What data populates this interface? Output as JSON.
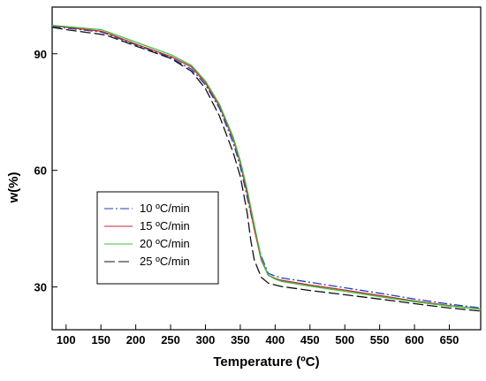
{
  "chart_data": {
    "type": "line",
    "title": "",
    "xlabel": "Temperature (ºC)",
    "ylabel": "w(%)",
    "xlim": [
      80,
      695
    ],
    "ylim": [
      19,
      102
    ],
    "xticks": [
      100,
      150,
      200,
      250,
      300,
      350,
      400,
      450,
      500,
      550,
      600,
      650
    ],
    "yticks": [
      30,
      60,
      90
    ],
    "legend_position": "lower-left",
    "series": [
      {
        "name": "10 ºC/min",
        "color": "#1f3fbf",
        "dash": "10,3,2,3",
        "x": [
          80,
          100,
          150,
          160,
          200,
          250,
          280,
          300,
          320,
          340,
          350,
          360,
          370,
          380,
          390,
          400,
          410,
          450,
          500,
          550,
          600,
          650,
          695
        ],
        "y": [
          97,
          96.6,
          95.6,
          95,
          92.3,
          89,
          86,
          82,
          76,
          67,
          61,
          53,
          45,
          38,
          33.5,
          32.8,
          32.3,
          31.2,
          29.8,
          28.4,
          26.9,
          25.6,
          24.6
        ]
      },
      {
        "name": "15 ºC/min",
        "color": "#c0282d",
        "dash": "",
        "x": [
          80,
          100,
          150,
          160,
          200,
          250,
          280,
          300,
          320,
          340,
          350,
          360,
          370,
          380,
          390,
          400,
          410,
          450,
          500,
          550,
          600,
          650,
          695
        ],
        "y": [
          97.2,
          96.8,
          95.8,
          95.2,
          92.5,
          89.3,
          86.6,
          82.5,
          76.5,
          68,
          62,
          54,
          45,
          37,
          33,
          32.2,
          31.7,
          30.5,
          29.2,
          27.8,
          26.4,
          25.2,
          24.3
        ]
      },
      {
        "name": "20 ºC/min",
        "color": "#3fbf3f",
        "dash": "",
        "x": [
          80,
          100,
          150,
          160,
          200,
          250,
          280,
          300,
          320,
          340,
          350,
          360,
          370,
          380,
          390,
          400,
          410,
          450,
          500,
          550,
          600,
          650,
          695
        ],
        "y": [
          97.3,
          97,
          96.2,
          95.6,
          93,
          89.8,
          87,
          83,
          77,
          68.5,
          62.5,
          55,
          46,
          37.5,
          33,
          32,
          31.4,
          30.2,
          28.9,
          27.5,
          26.2,
          25.1,
          24.3
        ]
      },
      {
        "name": "25 ºC/min",
        "color": "#111111",
        "dash": "12,4",
        "x": [
          80,
          100,
          150,
          160,
          200,
          250,
          280,
          300,
          320,
          340,
          350,
          360,
          365,
          370,
          380,
          390,
          400,
          410,
          450,
          500,
          550,
          600,
          650,
          695
        ],
        "y": [
          96.8,
          96.2,
          95,
          94.6,
          92,
          88.8,
          85.5,
          81,
          74,
          64.5,
          58.5,
          49,
          42,
          37,
          32.5,
          31,
          30.5,
          30.1,
          29.1,
          28,
          26.9,
          25.7,
          24.6,
          23.8
        ]
      }
    ]
  }
}
